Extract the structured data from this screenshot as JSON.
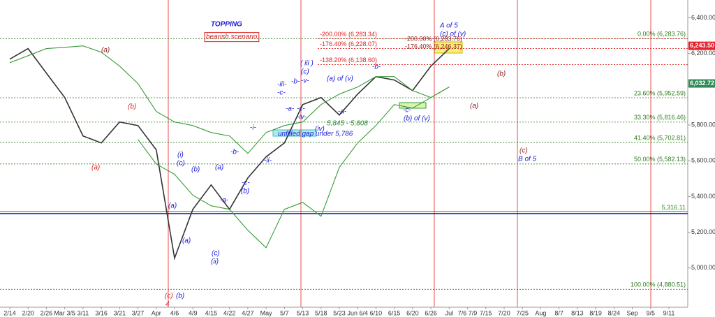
{
  "chart_data": {
    "type": "line",
    "categories": [
      "2/14",
      "2/20",
      "2/26",
      "Mar 3/5",
      "3/11",
      "3/16",
      "3/21",
      "3/27",
      "Apr",
      "4/6",
      "4/9",
      "4/15",
      "4/22",
      "4/27",
      "May",
      "5/7",
      "5/13",
      "5/18",
      "5/23",
      "Jun 6/4",
      "6/10",
      "6/15",
      "6/20",
      "6/26",
      "Jul",
      "7/6 7/9",
      "7/15",
      "7/20",
      "7/25",
      "Aug",
      "8/7",
      "8/13",
      "8/19",
      "8/24",
      "Sep",
      "9/5",
      "9/11"
    ],
    "series": [
      {
        "color": "#333333",
        "values": [
          6169,
          6228,
          6091,
          5954,
          5739,
          5700,
          5817,
          5797,
          5661,
          5055,
          5328,
          5465,
          5328,
          5504,
          5622,
          5700,
          5915,
          5954,
          5856,
          5973,
          6071,
          6052,
          5993,
          6130,
          6228,
          null,
          null,
          null,
          null,
          null,
          null,
          null,
          null,
          null,
          null,
          null,
          null
        ]
      },
      {
        "color": "#3a9a3a",
        "values": [
          6149,
          6188,
          6228,
          6235,
          6243,
          6208,
          6130,
          6032,
          5876,
          5817,
          5797,
          5758,
          5739,
          5641,
          5758,
          5797,
          5817,
          5915,
          5973,
          6013,
          6071,
          6071,
          5993,
          5954,
          6013,
          null,
          null,
          null,
          null,
          null,
          null,
          null,
          null,
          null,
          null,
          null,
          null
        ]
      },
      {
        "color": "#3a9a3a",
        "values": [
          null,
          null,
          null,
          null,
          null,
          null,
          null,
          5719,
          5582,
          5524,
          5407,
          5348,
          5328,
          5211,
          5113,
          5328,
          5367,
          5289,
          5563,
          5700,
          5797,
          5915,
          5895,
          5954,
          6013,
          null,
          null,
          null,
          null,
          null,
          null,
          null,
          null,
          null,
          null,
          null,
          null
        ]
      }
    ],
    "ylim": [
      4780,
      6500
    ],
    "yticks": [
      {
        "value": 5000,
        "label": "5,000.00"
      },
      {
        "value": 5200,
        "label": "5,200.00"
      },
      {
        "value": 5400,
        "label": "5,400.00"
      },
      {
        "value": 5600,
        "label": "5,600.00"
      },
      {
        "value": 5800,
        "label": "5,800.00"
      },
      {
        "value": 6200,
        "label": "6,200.00"
      },
      {
        "value": 6400,
        "label": "6,400.00"
      }
    ],
    "levels": [
      {
        "value": 6283.76,
        "label": "0.00% (6,283.76)",
        "color": "#2e7d1e"
      },
      {
        "value": 5952.59,
        "label": "23.60% (5,952.59)",
        "color": "#2e7d1e"
      },
      {
        "value": 5816.46,
        "label": "33.30% (5,816.46)",
        "color": "#2e7d1e"
      },
      {
        "value": 5702.81,
        "label": "41.40% (5,702.81)",
        "color": "#2e7d1e"
      },
      {
        "value": 5582.13,
        "label": "50.00% (5,582.13)",
        "color": "#2e7d1e"
      },
      {
        "value": 4880.51,
        "label": "100.00% (4,880.51)",
        "color": "#2e7d1e"
      }
    ],
    "extensions": [
      {
        "value": 6283.34,
        "label": "-200.00% (6,283.34)"
      },
      {
        "value": 6228.07,
        "label": "-176.40% (6,228.07)"
      },
      {
        "value": 6138.6,
        "label": "-138.20% (6,138.60)"
      }
    ],
    "support": {
      "value": 5316.11,
      "label": "5,316.11"
    },
    "price_tags": [
      {
        "value": 6243.5,
        "label": "6,243.50",
        "color": "#e8202a"
      },
      {
        "value": 6032.72,
        "label": "6,032.72",
        "color": "#2e8b57"
      }
    ],
    "annotations": [
      {
        "text": "TOPPING",
        "color": "#1a1adc"
      },
      {
        "text": "bearish scenario",
        "color": "#e02020"
      },
      {
        "text": "A of 5",
        "color": "#1a1adc"
      },
      {
        "text": "(c) of (v)",
        "color": "#1a1adc"
      },
      {
        "text": "( iii )",
        "color": "#1a1adc"
      },
      {
        "text": "(c)",
        "color": "#1a1adc"
      },
      {
        "text": "-iii-",
        "color": "#1a1adc"
      },
      {
        "text": "-c-",
        "color": "#1a1adc"
      },
      {
        "text": "-b-",
        "color": "#1a1adc"
      },
      {
        "text": "-v-",
        "color": "#1a1adc"
      },
      {
        "text": "-a-",
        "color": "#1a1adc"
      },
      {
        "text": "-c-",
        "color": "#1a1adc"
      },
      {
        "text": "-iv-",
        "color": "#1a1adc"
      },
      {
        "text": "(a) of (v)",
        "color": "#1a1adc"
      },
      {
        "text": "-b-",
        "color": "#1a1adc"
      },
      {
        "text": "-a-",
        "color": "#1a1adc"
      },
      {
        "text": "-c-",
        "color": "#1a1adc"
      },
      {
        "text": "(b) of (v)",
        "color": "#1a1adc"
      },
      {
        "text": "(iv)",
        "color": "#1a1adc"
      },
      {
        "text": "5,845 - 5,808",
        "color": "#2e8b2e"
      },
      {
        "text": "unfilled gap under 5,786",
        "color": "#1a1adc"
      },
      {
        "text": "-i-",
        "color": "#1a1adc"
      },
      {
        "text": "-ii-",
        "color": "#1a1adc"
      },
      {
        "text": "-b-",
        "color": "#1a1adc"
      },
      {
        "text": "-c-",
        "color": "#1a1adc"
      },
      {
        "text": "(b)",
        "color": "#1a1adc"
      },
      {
        "text": "(a)",
        "color": "#1a1adc"
      },
      {
        "text": "-a-",
        "color": "#1a1adc"
      },
      {
        "text": "(b)",
        "color": "#1a1adc"
      },
      {
        "text": "(c)",
        "color": "#1a1adc"
      },
      {
        "text": "(i)",
        "color": "#1a1adc"
      },
      {
        "text": "(a)",
        "color": "#1a1adc"
      },
      {
        "text": "(a)",
        "color": "#1a1adc"
      },
      {
        "text": "(c)",
        "color": "#1a1adc"
      },
      {
        "text": "(ii)",
        "color": "#1a1adc"
      },
      {
        "text": "(c)",
        "color": "#e02020"
      },
      {
        "text": "(b)",
        "color": "#1a1adc"
      },
      {
        "text": "4",
        "color": "#e02020"
      },
      {
        "text": "(b)",
        "color": "#e02020"
      },
      {
        "text": "(a)",
        "color": "#e02020"
      },
      {
        "text": "(a)",
        "color": "#8b1a1a"
      },
      {
        "text": "(b)",
        "color": "#8b1a1a"
      },
      {
        "text": "(a)",
        "color": "#8b1a1a"
      },
      {
        "text": "(c)",
        "color": "#8b1a1a"
      },
      {
        "text": "B of 5",
        "color": "#1a1adc"
      },
      {
        "text": "-200.00% (6,283.76)",
        "color": "#8b1a1a"
      },
      {
        "text": "-176.40% (6,246.37)",
        "color": "#8b1a1a"
      }
    ]
  }
}
